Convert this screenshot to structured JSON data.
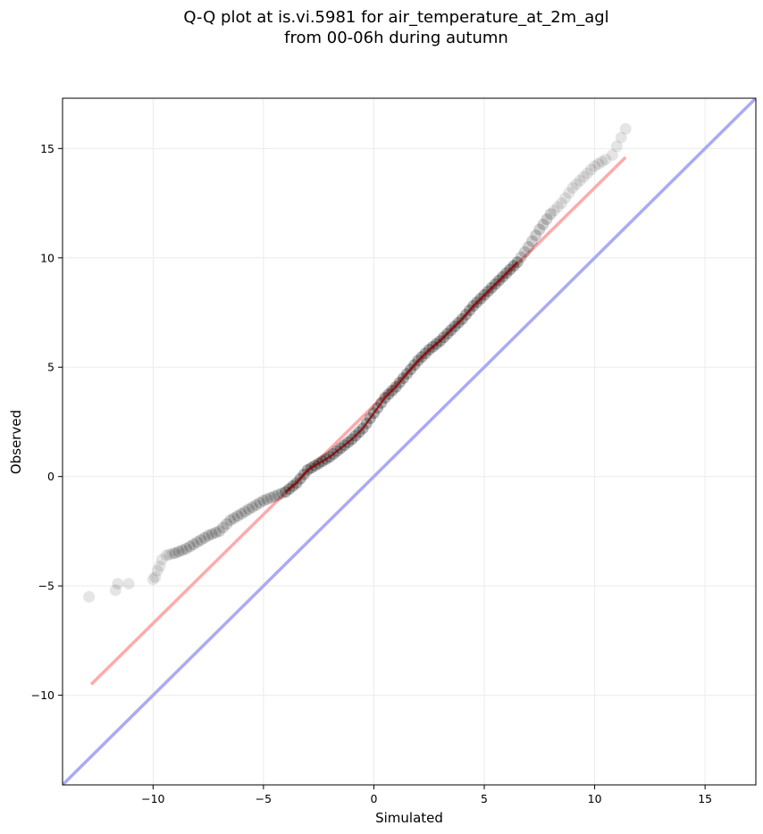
{
  "chart_data": {
    "type": "scatter",
    "title_lines": [
      "Q-Q plot at is.vi.5981 for air_temperature_at_2m_agl",
      "from 00-06h during autumn"
    ],
    "xlabel": "Simulated",
    "ylabel": "Observed",
    "xlim": [
      -14.1,
      17.3
    ],
    "ylim": [
      -14.1,
      17.3
    ],
    "xticks": [
      -10,
      -5,
      0,
      5,
      10,
      15
    ],
    "yticks": [
      -10,
      -5,
      0,
      5,
      10,
      15
    ],
    "xtick_labels": [
      "−10",
      "−5",
      "0",
      "5",
      "10",
      "15"
    ],
    "ytick_labels": [
      "−10",
      "−5",
      "0",
      "5",
      "10",
      "15"
    ],
    "grid": true,
    "reference_line": {
      "name": "1:1",
      "color": "#aaaaf5",
      "from": [
        -14.1,
        -14.1
      ],
      "to": [
        17.3,
        17.3
      ]
    },
    "fit_line": {
      "color": "#ffaaaa",
      "from": [
        -12.8,
        -9.5
      ],
      "to": [
        11.4,
        14.6
      ]
    },
    "quantile_curve": {
      "color": "#000000",
      "x": [
        -12.9,
        -11.7,
        -11.6,
        -11.1,
        -10.0,
        -9.9,
        -9.8,
        -9.7,
        -9.6,
        -9.4,
        -9.0,
        -8.5,
        -8.0,
        -7.5,
        -7.0,
        -6.5,
        -6.0,
        -5.5,
        -5.0,
        -4.5,
        -4.0,
        -3.5,
        -3.0,
        -2.5,
        -2.0,
        -1.5,
        -1.0,
        -0.5,
        0.0,
        0.5,
        1.0,
        1.5,
        2.0,
        2.5,
        3.0,
        3.5,
        4.0,
        4.5,
        5.0,
        5.5,
        6.0,
        6.5,
        7.0,
        7.5,
        8.0,
        8.5,
        9.0,
        9.5,
        10.0,
        10.5,
        10.8,
        11.0,
        11.2,
        11.4
      ],
      "y": [
        -5.5,
        -5.2,
        -4.9,
        -4.9,
        -4.7,
        -4.6,
        -4.3,
        -4.1,
        -3.8,
        -3.6,
        -3.5,
        -3.3,
        -3.0,
        -2.7,
        -2.5,
        -2.0,
        -1.7,
        -1.4,
        -1.1,
        -0.9,
        -0.7,
        -0.3,
        0.3,
        0.6,
        0.9,
        1.3,
        1.7,
        2.2,
        2.9,
        3.6,
        4.1,
        4.7,
        5.3,
        5.8,
        6.2,
        6.7,
        7.2,
        7.8,
        8.3,
        8.8,
        9.3,
        9.8,
        10.5,
        11.3,
        12.0,
        12.5,
        13.2,
        13.7,
        14.2,
        14.5,
        14.7,
        15.1,
        15.5,
        15.9
      ]
    }
  }
}
